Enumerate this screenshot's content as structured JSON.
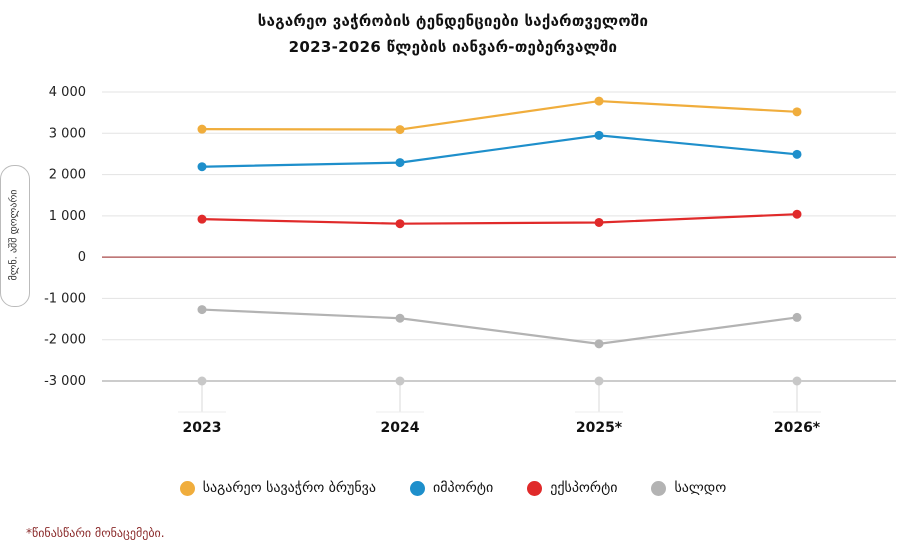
{
  "chart_data": {
    "type": "line",
    "title": "საგარეო ვაჭრობის ტენდენციები საქართველოში",
    "subtitle": "2023-2026 წლების იანვარ-თებერვალში",
    "ylabel": "მლნ. აშშ დოლარი",
    "xlabel": "",
    "categories": [
      "2023",
      "2024",
      "2025*",
      "2026*"
    ],
    "ylim": [
      -3000,
      4000
    ],
    "yticks": [
      4000,
      3000,
      2000,
      1000,
      0,
      -1000,
      -2000,
      -3000
    ],
    "ytick_labels": [
      "4 000",
      "3 000",
      "2 000",
      "1 000",
      "0",
      "-1 000",
      "-2 000",
      "-3 000"
    ],
    "series": [
      {
        "name": "საგარეო სავაჭრო ბრუნვა",
        "color": "#f0ad3c",
        "values": [
          3100,
          3090,
          3780,
          3520
        ]
      },
      {
        "name": "იმპორტი",
        "color": "#1e8fcb",
        "values": [
          2190,
          2290,
          2950,
          2490
        ]
      },
      {
        "name": "ექსპორტი",
        "color": "#e02a2a",
        "values": [
          920,
          810,
          840,
          1040
        ]
      },
      {
        "name": "სალდო",
        "color": "#b3b3b3",
        "values": [
          -1270,
          -1480,
          -2100,
          -1460
        ]
      }
    ],
    "footnote": "*წინასწარი მონაცემები."
  }
}
